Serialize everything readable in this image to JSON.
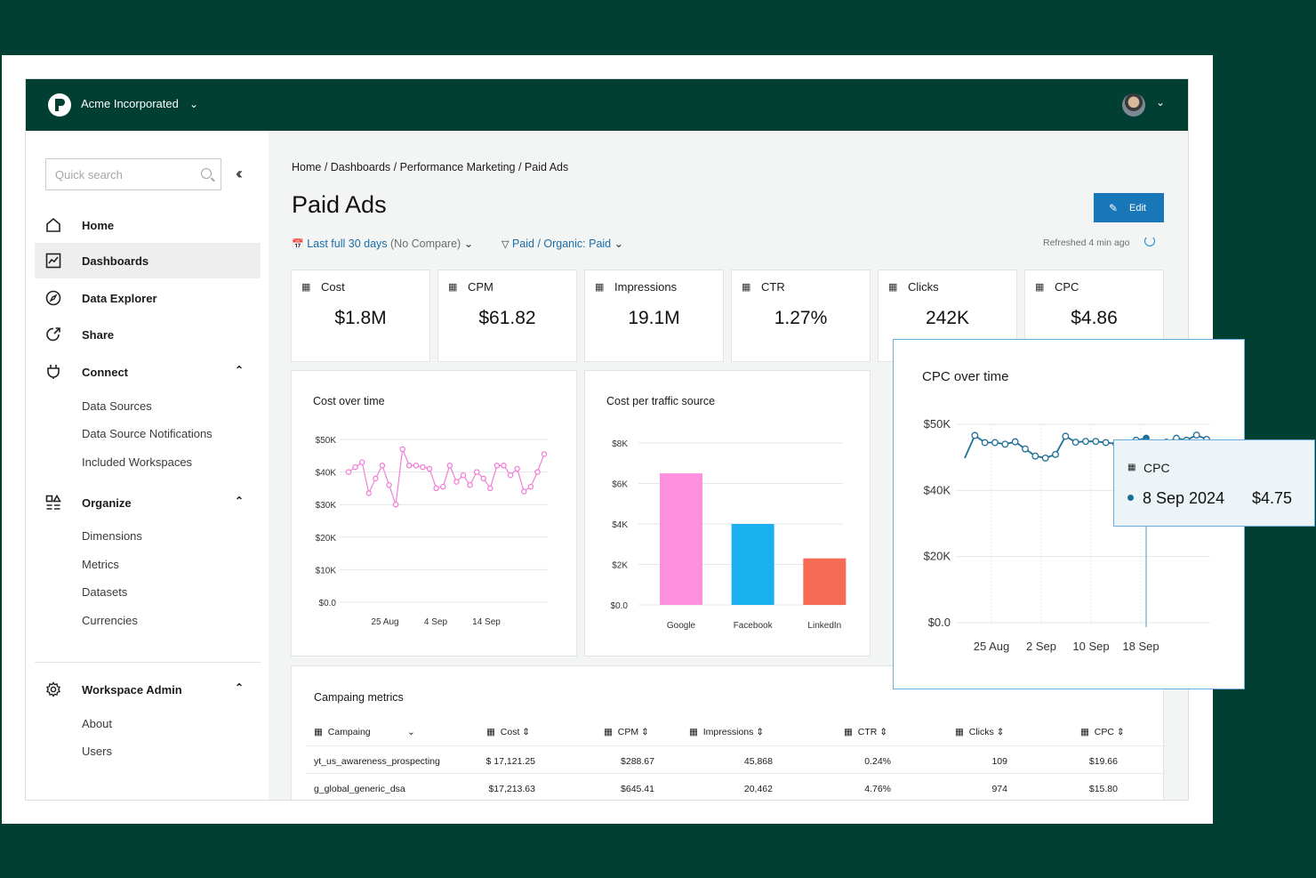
{
  "topbar": {
    "org_name": "Acme Incorporated"
  },
  "sidebar": {
    "search_placeholder": "Quick search",
    "nav": [
      {
        "label": "Home",
        "icon": "home-icon"
      },
      {
        "label": "Dashboards",
        "icon": "dashboard-icon",
        "active": true
      },
      {
        "label": "Data Explorer",
        "icon": "compass-icon"
      },
      {
        "label": "Share",
        "icon": "share-icon"
      },
      {
        "label": "Connect",
        "icon": "plug-icon"
      },
      {
        "label": "Organize",
        "icon": "organize-icon"
      },
      {
        "label": "Workspace Admin",
        "icon": "gear-icon"
      }
    ],
    "connect_items": [
      "Data Sources",
      "Data Source Notifications",
      "Included Workspaces"
    ],
    "organize_items": [
      "Dimensions",
      "Metrics",
      "Datasets",
      "Currencies"
    ],
    "admin_items": [
      "About",
      "Users"
    ]
  },
  "main": {
    "breadcrumb": "Home / Dashboards / Performance Marketing / Paid Ads",
    "title": "Paid Ads",
    "edit_label": "Edit",
    "date_filter": "Last full 30 days",
    "date_filter_suffix": "(No Compare)",
    "source_filter": "Paid / Organic: Paid",
    "refreshed": "Refreshed 4 min ago"
  },
  "kpis": [
    {
      "label": "Cost",
      "value": "$1.8M"
    },
    {
      "label": "CPM",
      "value": "$61.82"
    },
    {
      "label": "Impressions",
      "value": "19.1M"
    },
    {
      "label": "CTR",
      "value": "1.27%"
    },
    {
      "label": "Clicks",
      "value": "242K"
    },
    {
      "label": "CPC",
      "value": "$4.86"
    }
  ],
  "cost_chart_title": "Cost over time",
  "traffic_chart_title": "Cost per traffic source",
  "cpc_chart_title": "CPC over time",
  "tooltip": {
    "metric": "CPC",
    "date": "8 Sep 2024",
    "value": "$4.75"
  },
  "chart_data": [
    {
      "type": "line",
      "title": "Cost over time",
      "y_ticks": [
        "$50K",
        "$40K",
        "$30K",
        "$20K",
        "$10K",
        "$0.0"
      ],
      "x_ticks": [
        "25 Aug",
        "4 Sep",
        "14 Sep"
      ],
      "ylim": [
        0,
        50000
      ],
      "values": [
        40000,
        41500,
        43000,
        33500,
        38000,
        42000,
        36000,
        30000,
        47000,
        42000,
        42000,
        41500,
        41000,
        35000,
        35500,
        42000,
        37000,
        39000,
        36000,
        40000,
        38000,
        35000,
        42000,
        42000,
        39000,
        41000,
        34000,
        35500,
        40000,
        45500
      ]
    },
    {
      "type": "bar",
      "title": "Cost per traffic source",
      "categories": [
        "Google",
        "Facebook",
        "LinkedIn"
      ],
      "values": [
        6500,
        4000,
        2300
      ],
      "colors": [
        "#ff90e0",
        "#1ab0f0",
        "#f66b55"
      ],
      "y_ticks": [
        "$8K",
        "$6K",
        "$4K",
        "$2K",
        "$0.0"
      ],
      "ylim": [
        0,
        8000
      ]
    },
    {
      "type": "line",
      "title": "CPC over time",
      "y_ticks": [
        "$50K",
        "$40K",
        "$20K",
        "$0.0"
      ],
      "x_ticks": [
        "25 Aug",
        "2 Sep",
        "10 Sep",
        "18 Sep"
      ],
      "ylim": [
        0,
        50000
      ],
      "values": [
        41500,
        47200,
        45400,
        45400,
        45000,
        45600,
        43800,
        42000,
        41500,
        42400,
        47000,
        45500,
        45700,
        45700,
        45400,
        45100,
        44600,
        46000,
        46500,
        44500,
        45500,
        46500,
        46000,
        47300,
        46200
      ],
      "highlight_index": 18
    }
  ],
  "table": {
    "title": "Campaing metrics",
    "columns": [
      "Campaing",
      "Cost",
      "CPM",
      "Impressions",
      "CTR",
      "Clicks",
      "CPC"
    ],
    "rows": [
      [
        "yt_us_awareness_prospecting",
        "$ 17,121.25",
        "$288.67",
        "45,868",
        "0.24%",
        "109",
        "$19.66"
      ],
      [
        "g_global_generic_dsa",
        "$17,213.63",
        "$645.41",
        "20,462",
        "4.76%",
        "974",
        "$15.80"
      ]
    ]
  }
}
